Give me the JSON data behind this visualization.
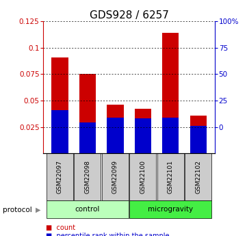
{
  "title": "GDS928 / 6257",
  "samples": [
    "GSM22097",
    "GSM22098",
    "GSM22099",
    "GSM22100",
    "GSM22101",
    "GSM22102"
  ],
  "red_values": [
    0.091,
    0.075,
    0.046,
    0.042,
    0.114,
    0.036
  ],
  "blue_values": [
    0.041,
    0.029,
    0.034,
    0.033,
    0.034,
    0.026
  ],
  "red_color": "#cc0000",
  "blue_color": "#0000cc",
  "left_yticks": [
    0.025,
    0.05,
    0.075,
    0.1,
    0.125
  ],
  "left_ylabels": [
    "0.025",
    "0.05",
    "0.075",
    "0.1",
    "0.125"
  ],
  "right_yticks": [
    0,
    25,
    50,
    75,
    100
  ],
  "right_ylabels": [
    "0",
    "25",
    "50",
    "75",
    "100%"
  ],
  "ymin": 0.0,
  "ymax": 0.125,
  "groups": [
    {
      "label": "control",
      "start": 0,
      "end": 3,
      "color": "#bbffbb"
    },
    {
      "label": "microgravity",
      "start": 3,
      "end": 6,
      "color": "#44ee44"
    }
  ],
  "protocol_label": "protocol",
  "legend_items": [
    {
      "label": "count",
      "color": "#cc0000"
    },
    {
      "label": "percentile rank within the sample",
      "color": "#0000cc"
    }
  ],
  "bar_width": 0.6,
  "sample_box_color": "#cccccc",
  "background_color": "#ffffff",
  "title_fontsize": 11,
  "tick_fontsize": 7.5
}
